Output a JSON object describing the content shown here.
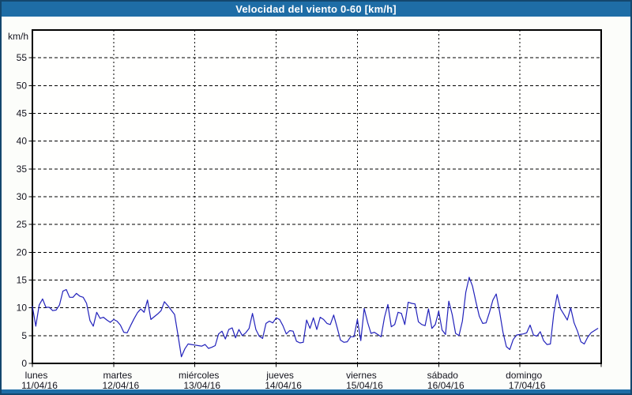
{
  "chart_data": {
    "type": "line",
    "title": "Velocidad del viento 0-60 [km/h]",
    "ylabel": "km/h",
    "ylim": [
      0,
      60
    ],
    "y_ticks": [
      0,
      5,
      10,
      15,
      20,
      25,
      30,
      35,
      40,
      45,
      50,
      55
    ],
    "x_days": [
      {
        "name": "lunes",
        "date": "11/04/16"
      },
      {
        "name": "martes",
        "date": "12/04/16"
      },
      {
        "name": "miércoles",
        "date": "13/04/16"
      },
      {
        "name": "jueves",
        "date": "14/04/16"
      },
      {
        "name": "viernes",
        "date": "15/04/16"
      },
      {
        "name": "sábado",
        "date": "16/04/16"
      },
      {
        "name": "domingo",
        "date": "17/04/16"
      }
    ],
    "sampling": "hourly",
    "grid": {
      "style": "dashed",
      "horizontal_step_kmh": 5,
      "vertical": "day boundaries"
    },
    "legend": "none",
    "series": [
      {
        "name": "velocidad del viento",
        "unit": "km/h",
        "color": "#2222bb",
        "values": [
          10.3,
          6.7,
          10.5,
          11.6,
          10.1,
          10.1,
          9.5,
          9.6,
          10.5,
          13.0,
          13.3,
          11.9,
          11.9,
          12.6,
          12.1,
          11.9,
          10.8,
          7.7,
          6.7,
          9.2,
          8.1,
          8.3,
          7.8,
          7.4,
          7.9,
          7.6,
          6.9,
          5.6,
          5.5,
          6.8,
          8.0,
          9.1,
          9.8,
          9.2,
          11.4,
          7.9,
          8.4,
          8.9,
          9.5,
          11.1,
          10.4,
          9.6,
          8.8,
          5.1,
          1.2,
          2.6,
          3.5,
          3.4,
          3.3,
          3.2,
          3.1,
          3.4,
          2.7,
          2.9,
          3.2,
          5.3,
          5.8,
          4.4,
          6.1,
          6.4,
          4.6,
          6.1,
          5.0,
          5.5,
          6.3,
          9.0,
          6.1,
          4.9,
          4.5,
          7.2,
          7.6,
          7.3,
          8.2,
          7.9,
          6.8,
          5.3,
          5.9,
          5.8,
          4.0,
          3.7,
          3.8,
          7.8,
          6.3,
          8.2,
          6.1,
          8.3,
          7.9,
          7.2,
          7.0,
          8.7,
          6.5,
          4.2,
          3.8,
          3.9,
          4.8,
          4.8,
          7.9,
          4.1,
          9.9,
          7.4,
          5.4,
          5.6,
          5.2,
          4.8,
          8.3,
          10.6,
          6.6,
          7.0,
          9.2,
          9.0,
          7.0,
          11.0,
          10.8,
          10.7,
          7.5,
          7.0,
          6.8,
          9.8,
          6.3,
          7.0,
          9.4,
          6.0,
          5.2,
          11.2,
          8.8,
          5.4,
          5.0,
          7.6,
          12.8,
          15.5,
          13.9,
          11.1,
          8.5,
          7.2,
          7.3,
          9.2,
          11.4,
          12.5,
          9.3,
          5.6,
          3.0,
          2.5,
          4.3,
          5.1,
          5.2,
          5.3,
          5.5,
          6.9,
          5.1,
          4.9,
          5.7,
          4.1,
          3.4,
          3.5,
          9.0,
          12.4,
          9.8,
          8.8,
          7.8,
          10.0,
          7.3,
          5.8,
          3.9,
          3.5,
          4.7,
          5.5,
          5.9,
          6.3
        ]
      }
    ]
  },
  "colors": {
    "header_bg": "#1e6da6",
    "page_border": "#14476e",
    "body_bg": "#fcfdfa",
    "plot_bg": "#fffffe",
    "grid": "#000000",
    "text": "#14141e",
    "line": "#2222bb"
  }
}
